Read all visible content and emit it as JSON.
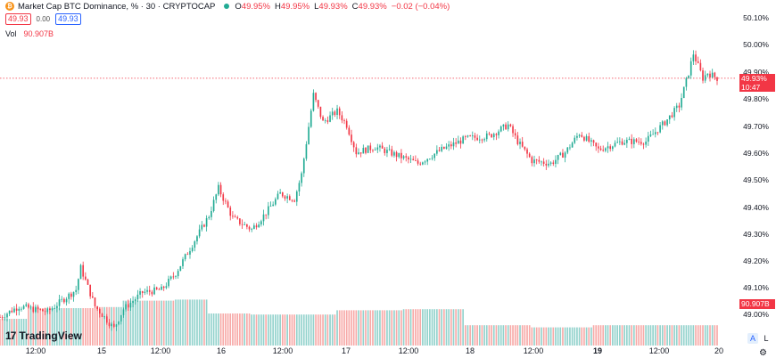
{
  "header": {
    "logo_letter": "₿",
    "title": "Market Cap BTC Dominance, % · 30 · CRYPTOCAP",
    "ohlc": [
      {
        "label": "O",
        "value": "49.95%"
      },
      {
        "label": "H",
        "value": "49.95%"
      },
      {
        "label": "L",
        "value": "49.93%"
      },
      {
        "label": "C",
        "value": "49.93%"
      }
    ],
    "change": "−0.02 (−0.04%)",
    "sell_price": "49.93",
    "spread": "0.00",
    "buy_price": "49.93",
    "vol_label": "Vol",
    "vol_value": "90.907B"
  },
  "y_axis": [
    "50.10%",
    "50.00%",
    "49.90%",
    "49.80%",
    "49.70%",
    "49.60%",
    "49.50%",
    "49.40%",
    "49.30%",
    "49.20%",
    "49.10%",
    "49.00%"
  ],
  "current_price": {
    "value": "49.93%",
    "countdown": "10:47"
  },
  "volume_tag": "90.907B",
  "x_axis": [
    {
      "label": "12:00",
      "bold": false
    },
    {
      "label": "15",
      "bold": false
    },
    {
      "label": "12:00",
      "bold": false
    },
    {
      "label": "16",
      "bold": false
    },
    {
      "label": "12:00",
      "bold": false
    },
    {
      "label": "17",
      "bold": false
    },
    {
      "label": "12:00",
      "bold": false
    },
    {
      "label": "18",
      "bold": false
    },
    {
      "label": "12:00",
      "bold": false
    },
    {
      "label": "19",
      "bold": true
    },
    {
      "label": "12:00",
      "bold": false
    },
    {
      "label": "20",
      "bold": false
    }
  ],
  "branding": {
    "name": "TradingView"
  },
  "tools": {
    "auto": "A",
    "log": "L"
  },
  "colors": {
    "up": "#22ab94",
    "down": "#f23645",
    "up_vol": "#92d2cc",
    "down_vol": "#f7a9a7"
  },
  "chart_data": {
    "type": "candlestick",
    "interval_minutes": 30,
    "y_range": [
      48.97,
      50.15
    ],
    "anchors": [
      [
        0,
        49.06
      ],
      [
        8,
        49.1
      ],
      [
        20,
        49.08
      ],
      [
        26,
        49.12
      ],
      [
        32,
        49.16
      ],
      [
        34,
        49.24
      ],
      [
        40,
        49.1
      ],
      [
        48,
        49.02
      ],
      [
        52,
        49.09
      ],
      [
        60,
        49.15
      ],
      [
        68,
        49.16
      ],
      [
        74,
        49.22
      ],
      [
        80,
        49.31
      ],
      [
        88,
        49.43
      ],
      [
        92,
        49.53
      ],
      [
        98,
        49.42
      ],
      [
        106,
        49.38
      ],
      [
        112,
        49.44
      ],
      [
        118,
        49.51
      ],
      [
        124,
        49.49
      ],
      [
        127,
        49.58
      ],
      [
        132,
        49.87
      ],
      [
        136,
        49.77
      ],
      [
        142,
        49.81
      ],
      [
        146,
        49.76
      ],
      [
        150,
        49.66
      ],
      [
        158,
        49.68
      ],
      [
        170,
        49.64
      ],
      [
        176,
        49.62
      ],
      [
        186,
        49.67
      ],
      [
        196,
        49.71
      ],
      [
        206,
        49.72
      ],
      [
        214,
        49.76
      ],
      [
        218,
        49.7
      ],
      [
        224,
        49.63
      ],
      [
        232,
        49.62
      ],
      [
        238,
        49.66
      ],
      [
        244,
        49.73
      ],
      [
        252,
        49.67
      ],
      [
        262,
        49.7
      ],
      [
        272,
        49.7
      ],
      [
        280,
        49.77
      ],
      [
        286,
        49.83
      ],
      [
        290,
        49.95
      ],
      [
        292,
        50.02
      ],
      [
        296,
        49.93
      ],
      [
        298,
        49.95
      ],
      [
        302,
        49.93
      ]
    ],
    "volume_blocks": [
      {
        "from": 0,
        "to": 12,
        "level": 0.25
      },
      {
        "from": 12,
        "to": 40,
        "level": 0.35
      },
      {
        "from": 40,
        "to": 52,
        "level": 0.36
      },
      {
        "from": 52,
        "to": 74,
        "level": 0.42
      },
      {
        "from": 74,
        "to": 88,
        "level": 0.43
      },
      {
        "from": 88,
        "to": 106,
        "level": 0.3
      },
      {
        "from": 106,
        "to": 142,
        "level": 0.29
      },
      {
        "from": 142,
        "to": 170,
        "level": 0.33
      },
      {
        "from": 170,
        "to": 196,
        "level": 0.34
      },
      {
        "from": 196,
        "to": 224,
        "level": 0.19
      },
      {
        "from": 224,
        "to": 250,
        "level": 0.17
      },
      {
        "from": 250,
        "to": 302,
        "level": 0.19
      }
    ]
  }
}
